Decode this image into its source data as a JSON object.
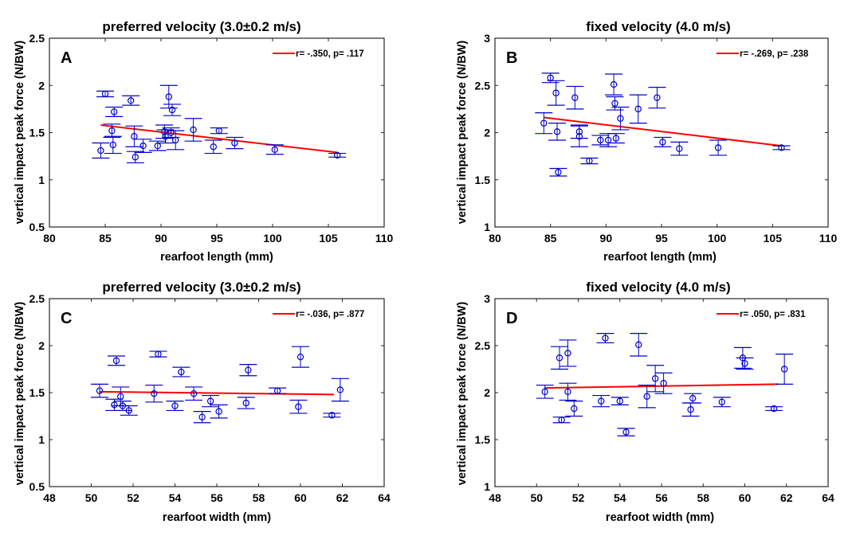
{
  "figure": {
    "background": "#ffffff",
    "marker_color": "#0000cc",
    "fit_color": "#ff0000"
  },
  "chart_data": [
    {
      "panel": "A",
      "type": "scatter",
      "title": "preferred velocity (3.0±0.2 m/s)",
      "xlabel": "rearfoot length (mm)",
      "ylabel": "vertical impact peak force (N/BW)",
      "xlim": [
        80,
        110
      ],
      "ylim": [
        0.5,
        2.5
      ],
      "xticks": [
        "80",
        "85",
        "90",
        "95",
        "100",
        "105",
        "110"
      ],
      "yticks": [
        "0.5",
        "1",
        "1.5",
        "2",
        "2.5"
      ],
      "legend": "r= -.350, p= .117",
      "legend_position": "top-right",
      "fit": [
        [
          84.6,
          1.58
        ],
        [
          105.8,
          1.29
        ]
      ],
      "points": [
        {
          "x": 84.6,
          "y": 1.31,
          "err": 0.08
        },
        {
          "x": 85.0,
          "y": 1.91,
          "err": 0.03
        },
        {
          "x": 85.6,
          "y": 1.52,
          "err": 0.07
        },
        {
          "x": 85.7,
          "y": 1.37,
          "err": 0.09
        },
        {
          "x": 85.8,
          "y": 1.72,
          "err": 0.05
        },
        {
          "x": 87.3,
          "y": 1.84,
          "err": 0.05
        },
        {
          "x": 87.6,
          "y": 1.46,
          "err": 0.11
        },
        {
          "x": 87.7,
          "y": 1.24,
          "err": 0.06
        },
        {
          "x": 88.4,
          "y": 1.36,
          "err": 0.07
        },
        {
          "x": 89.7,
          "y": 1.36,
          "err": 0.05
        },
        {
          "x": 90.3,
          "y": 1.51,
          "err": 0.07
        },
        {
          "x": 90.4,
          "y": 1.46,
          "err": 0.07
        },
        {
          "x": 90.7,
          "y": 1.88,
          "err": 0.12
        },
        {
          "x": 90.9,
          "y": 1.5,
          "err": 0.05
        },
        {
          "x": 91.0,
          "y": 1.74,
          "err": 0.06
        },
        {
          "x": 91.3,
          "y": 1.42,
          "err": 0.1
        },
        {
          "x": 92.9,
          "y": 1.53,
          "err": 0.12
        },
        {
          "x": 94.7,
          "y": 1.35,
          "err": 0.07
        },
        {
          "x": 95.2,
          "y": 1.52,
          "err": 0.03
        },
        {
          "x": 96.6,
          "y": 1.39,
          "err": 0.06
        },
        {
          "x": 100.2,
          "y": 1.32,
          "err": 0.05
        },
        {
          "x": 105.8,
          "y": 1.26,
          "err": 0.02
        }
      ]
    },
    {
      "panel": "B",
      "type": "scatter",
      "title": "fixed velocity (4.0 m/s)",
      "xlabel": "rearfoot length (mm)",
      "ylabel": "vertical impact peak force (N/BW)",
      "xlim": [
        80,
        110
      ],
      "ylim": [
        1,
        3
      ],
      "xticks": [
        "80",
        "85",
        "90",
        "95",
        "100",
        "105",
        "110"
      ],
      "yticks": [
        "1",
        "1.5",
        "2",
        "2.5",
        "3"
      ],
      "legend": "r= -.269, p= .238",
      "legend_position": "top-right",
      "fit": [
        [
          84.4,
          2.16
        ],
        [
          105.8,
          1.86
        ]
      ],
      "points": [
        {
          "x": 84.4,
          "y": 2.1,
          "err": 0.11
        },
        {
          "x": 85.0,
          "y": 2.58,
          "err": 0.05
        },
        {
          "x": 85.5,
          "y": 2.42,
          "err": 0.13
        },
        {
          "x": 85.6,
          "y": 2.01,
          "err": 0.09
        },
        {
          "x": 85.7,
          "y": 1.58,
          "err": 0.04
        },
        {
          "x": 87.2,
          "y": 2.37,
          "err": 0.12
        },
        {
          "x": 87.6,
          "y": 2.01,
          "err": 0.07
        },
        {
          "x": 87.6,
          "y": 1.96,
          "err": 0.11
        },
        {
          "x": 88.5,
          "y": 1.7,
          "err": 0.03
        },
        {
          "x": 89.5,
          "y": 1.92,
          "err": 0.05
        },
        {
          "x": 90.2,
          "y": 1.92,
          "err": 0.07
        },
        {
          "x": 90.7,
          "y": 2.51,
          "err": 0.11
        },
        {
          "x": 90.8,
          "y": 2.31,
          "err": 0.07
        },
        {
          "x": 90.9,
          "y": 1.94,
          "err": 0.05
        },
        {
          "x": 91.3,
          "y": 2.15,
          "err": 0.12
        },
        {
          "x": 92.9,
          "y": 2.25,
          "err": 0.15
        },
        {
          "x": 94.6,
          "y": 2.37,
          "err": 0.11
        },
        {
          "x": 95.1,
          "y": 1.9,
          "err": 0.05
        },
        {
          "x": 96.6,
          "y": 1.83,
          "err": 0.07
        },
        {
          "x": 100.1,
          "y": 1.84,
          "err": 0.08
        },
        {
          "x": 105.8,
          "y": 1.84,
          "err": 0.02
        }
      ]
    },
    {
      "panel": "C",
      "type": "scatter",
      "title": "preferred velocity (3.0±0.2 m/s)",
      "xlabel": "rearfoot width (mm)",
      "ylabel": "vertical impact peak force (N/BW)",
      "xlim": [
        48,
        64
      ],
      "ylim": [
        0.5,
        2.5
      ],
      "xticks": [
        "48",
        "50",
        "52",
        "54",
        "56",
        "58",
        "60",
        "62",
        "64"
      ],
      "yticks": [
        "0.5",
        "1",
        "1.5",
        "2",
        "2.5"
      ],
      "legend": "r= -.036, p= .877",
      "legend_position": "top-right",
      "fit": [
        [
          50.4,
          1.51
        ],
        [
          61.6,
          1.48
        ]
      ],
      "points": [
        {
          "x": 50.4,
          "y": 1.52,
          "err": 0.07
        },
        {
          "x": 51.1,
          "y": 1.37,
          "err": 0.06
        },
        {
          "x": 51.2,
          "y": 1.84,
          "err": 0.05
        },
        {
          "x": 51.4,
          "y": 1.46,
          "err": 0.1
        },
        {
          "x": 51.5,
          "y": 1.36,
          "err": 0.05
        },
        {
          "x": 51.8,
          "y": 1.31,
          "err": 0.05
        },
        {
          "x": 53.0,
          "y": 1.49,
          "err": 0.09
        },
        {
          "x": 53.2,
          "y": 1.91,
          "err": 0.03
        },
        {
          "x": 54.0,
          "y": 1.36,
          "err": 0.05
        },
        {
          "x": 54.3,
          "y": 1.72,
          "err": 0.05
        },
        {
          "x": 54.9,
          "y": 1.49,
          "err": 0.07
        },
        {
          "x": 55.3,
          "y": 1.24,
          "err": 0.06
        },
        {
          "x": 55.7,
          "y": 1.41,
          "err": 0.06
        },
        {
          "x": 56.1,
          "y": 1.3,
          "err": 0.07
        },
        {
          "x": 57.4,
          "y": 1.39,
          "err": 0.06
        },
        {
          "x": 57.5,
          "y": 1.74,
          "err": 0.06
        },
        {
          "x": 58.9,
          "y": 1.52,
          "err": 0.03
        },
        {
          "x": 59.9,
          "y": 1.35,
          "err": 0.07
        },
        {
          "x": 60.0,
          "y": 1.88,
          "err": 0.11
        },
        {
          "x": 61.5,
          "y": 1.26,
          "err": 0.02
        },
        {
          "x": 61.9,
          "y": 1.53,
          "err": 0.12
        }
      ]
    },
    {
      "panel": "D",
      "type": "scatter",
      "title": "fixed velocity (4.0 m/s)",
      "xlabel": "rearfoot width (mm)",
      "ylabel": "vertical impact peak force (N/BW)",
      "xlim": [
        48,
        64
      ],
      "ylim": [
        1,
        3
      ],
      "xticks": [
        "48",
        "50",
        "52",
        "54",
        "56",
        "58",
        "60",
        "62",
        "64"
      ],
      "yticks": [
        "1",
        "1.5",
        "2",
        "2.5",
        "3"
      ],
      "legend": "r= .050, p= .831",
      "legend_position": "top-right",
      "fit": [
        [
          50.4,
          2.05
        ],
        [
          61.6,
          2.09
        ]
      ],
      "points": [
        {
          "x": 50.4,
          "y": 2.01,
          "err": 0.07
        },
        {
          "x": 51.1,
          "y": 2.37,
          "err": 0.12
        },
        {
          "x": 51.2,
          "y": 1.71,
          "err": 0.03
        },
        {
          "x": 51.5,
          "y": 2.42,
          "err": 0.14
        },
        {
          "x": 51.5,
          "y": 2.01,
          "err": 0.09
        },
        {
          "x": 51.8,
          "y": 1.83,
          "err": 0.08
        },
        {
          "x": 53.1,
          "y": 1.91,
          "err": 0.06
        },
        {
          "x": 53.3,
          "y": 2.58,
          "err": 0.05
        },
        {
          "x": 54.0,
          "y": 1.91,
          "err": 0.04
        },
        {
          "x": 54.3,
          "y": 1.58,
          "err": 0.04
        },
        {
          "x": 54.9,
          "y": 2.51,
          "err": 0.12
        },
        {
          "x": 55.3,
          "y": 1.96,
          "err": 0.12
        },
        {
          "x": 55.7,
          "y": 2.15,
          "err": 0.14
        },
        {
          "x": 56.1,
          "y": 2.1,
          "err": 0.11
        },
        {
          "x": 57.4,
          "y": 1.82,
          "err": 0.07
        },
        {
          "x": 57.5,
          "y": 1.94,
          "err": 0.05
        },
        {
          "x": 58.9,
          "y": 1.9,
          "err": 0.05
        },
        {
          "x": 59.9,
          "y": 2.37,
          "err": 0.11
        },
        {
          "x": 60.0,
          "y": 2.31,
          "err": 0.06
        },
        {
          "x": 61.4,
          "y": 1.83,
          "err": 0.02
        },
        {
          "x": 61.9,
          "y": 2.25,
          "err": 0.16
        }
      ]
    }
  ]
}
